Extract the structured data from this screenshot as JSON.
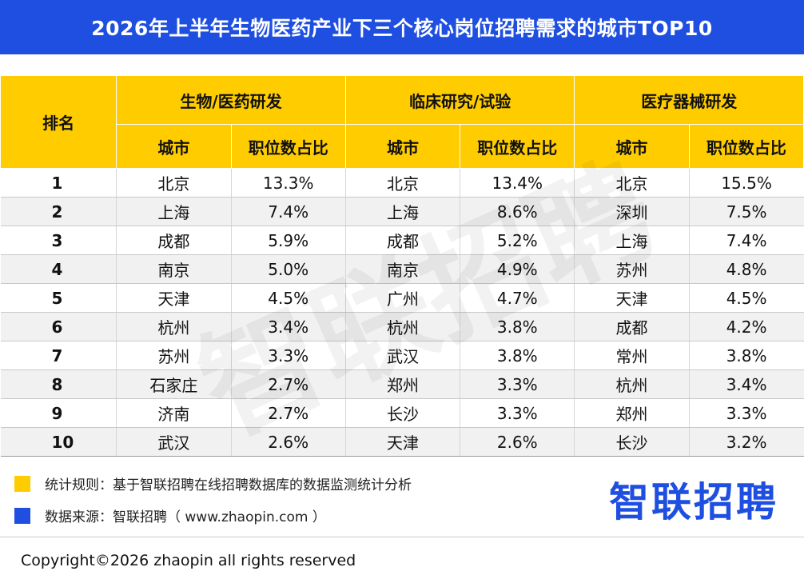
{
  "colors": {
    "accent_blue": "#1f4fe0",
    "accent_yellow": "#ffcc00",
    "row_stripe": "#f1f1f1"
  },
  "chart_data": {
    "type": "table",
    "title": "2026年上半年生物医药产业下三个核心岗位招聘需求的城市TOP10",
    "rank_header": "排名",
    "sub_headers": {
      "city": "城市",
      "share": "职位数占比"
    },
    "groups": [
      {
        "name": "生物/医药研发",
        "rows": [
          {
            "city": "北京",
            "share": "13.3%"
          },
          {
            "city": "上海",
            "share": "7.4%"
          },
          {
            "city": "成都",
            "share": "5.9%"
          },
          {
            "city": "南京",
            "share": "5.0%"
          },
          {
            "city": "天津",
            "share": "4.5%"
          },
          {
            "city": "杭州",
            "share": "3.4%"
          },
          {
            "city": "苏州",
            "share": "3.3%"
          },
          {
            "city": "石家庄",
            "share": "2.7%"
          },
          {
            "city": "济南",
            "share": "2.7%"
          },
          {
            "city": "武汉",
            "share": "2.6%"
          }
        ]
      },
      {
        "name": "临床研究/试验",
        "rows": [
          {
            "city": "北京",
            "share": "13.4%"
          },
          {
            "city": "上海",
            "share": "8.6%"
          },
          {
            "city": "成都",
            "share": "5.2%"
          },
          {
            "city": "南京",
            "share": "4.9%"
          },
          {
            "city": "广州",
            "share": "4.7%"
          },
          {
            "city": "杭州",
            "share": "3.8%"
          },
          {
            "city": "武汉",
            "share": "3.8%"
          },
          {
            "city": "郑州",
            "share": "3.3%"
          },
          {
            "city": "长沙",
            "share": "3.3%"
          },
          {
            "city": "天津",
            "share": "2.6%"
          }
        ]
      },
      {
        "name": "医疗器械研发",
        "rows": [
          {
            "city": "北京",
            "share": "15.5%"
          },
          {
            "city": "深圳",
            "share": "7.5%"
          },
          {
            "city": "上海",
            "share": "7.4%"
          },
          {
            "city": "苏州",
            "share": "4.8%"
          },
          {
            "city": "天津",
            "share": "4.5%"
          },
          {
            "city": "成都",
            "share": "4.2%"
          },
          {
            "city": "常州",
            "share": "3.8%"
          },
          {
            "city": "杭州",
            "share": "3.4%"
          },
          {
            "city": "郑州",
            "share": "3.3%"
          },
          {
            "city": "长沙",
            "share": "3.2%"
          }
        ]
      }
    ]
  },
  "ranks": [
    "1",
    "2",
    "3",
    "4",
    "5",
    "6",
    "7",
    "8",
    "9",
    "10"
  ],
  "legend": {
    "rule": "统计规则：基于智联招聘在线招聘数据库的数据监测统计分析",
    "source": "数据来源：智联招聘（ www.zhaopin.com ）"
  },
  "logo_text": "智联招聘",
  "watermark_text": "智联招聘",
  "copyright": "Copyright©2026 zhaopin all rights reserved"
}
